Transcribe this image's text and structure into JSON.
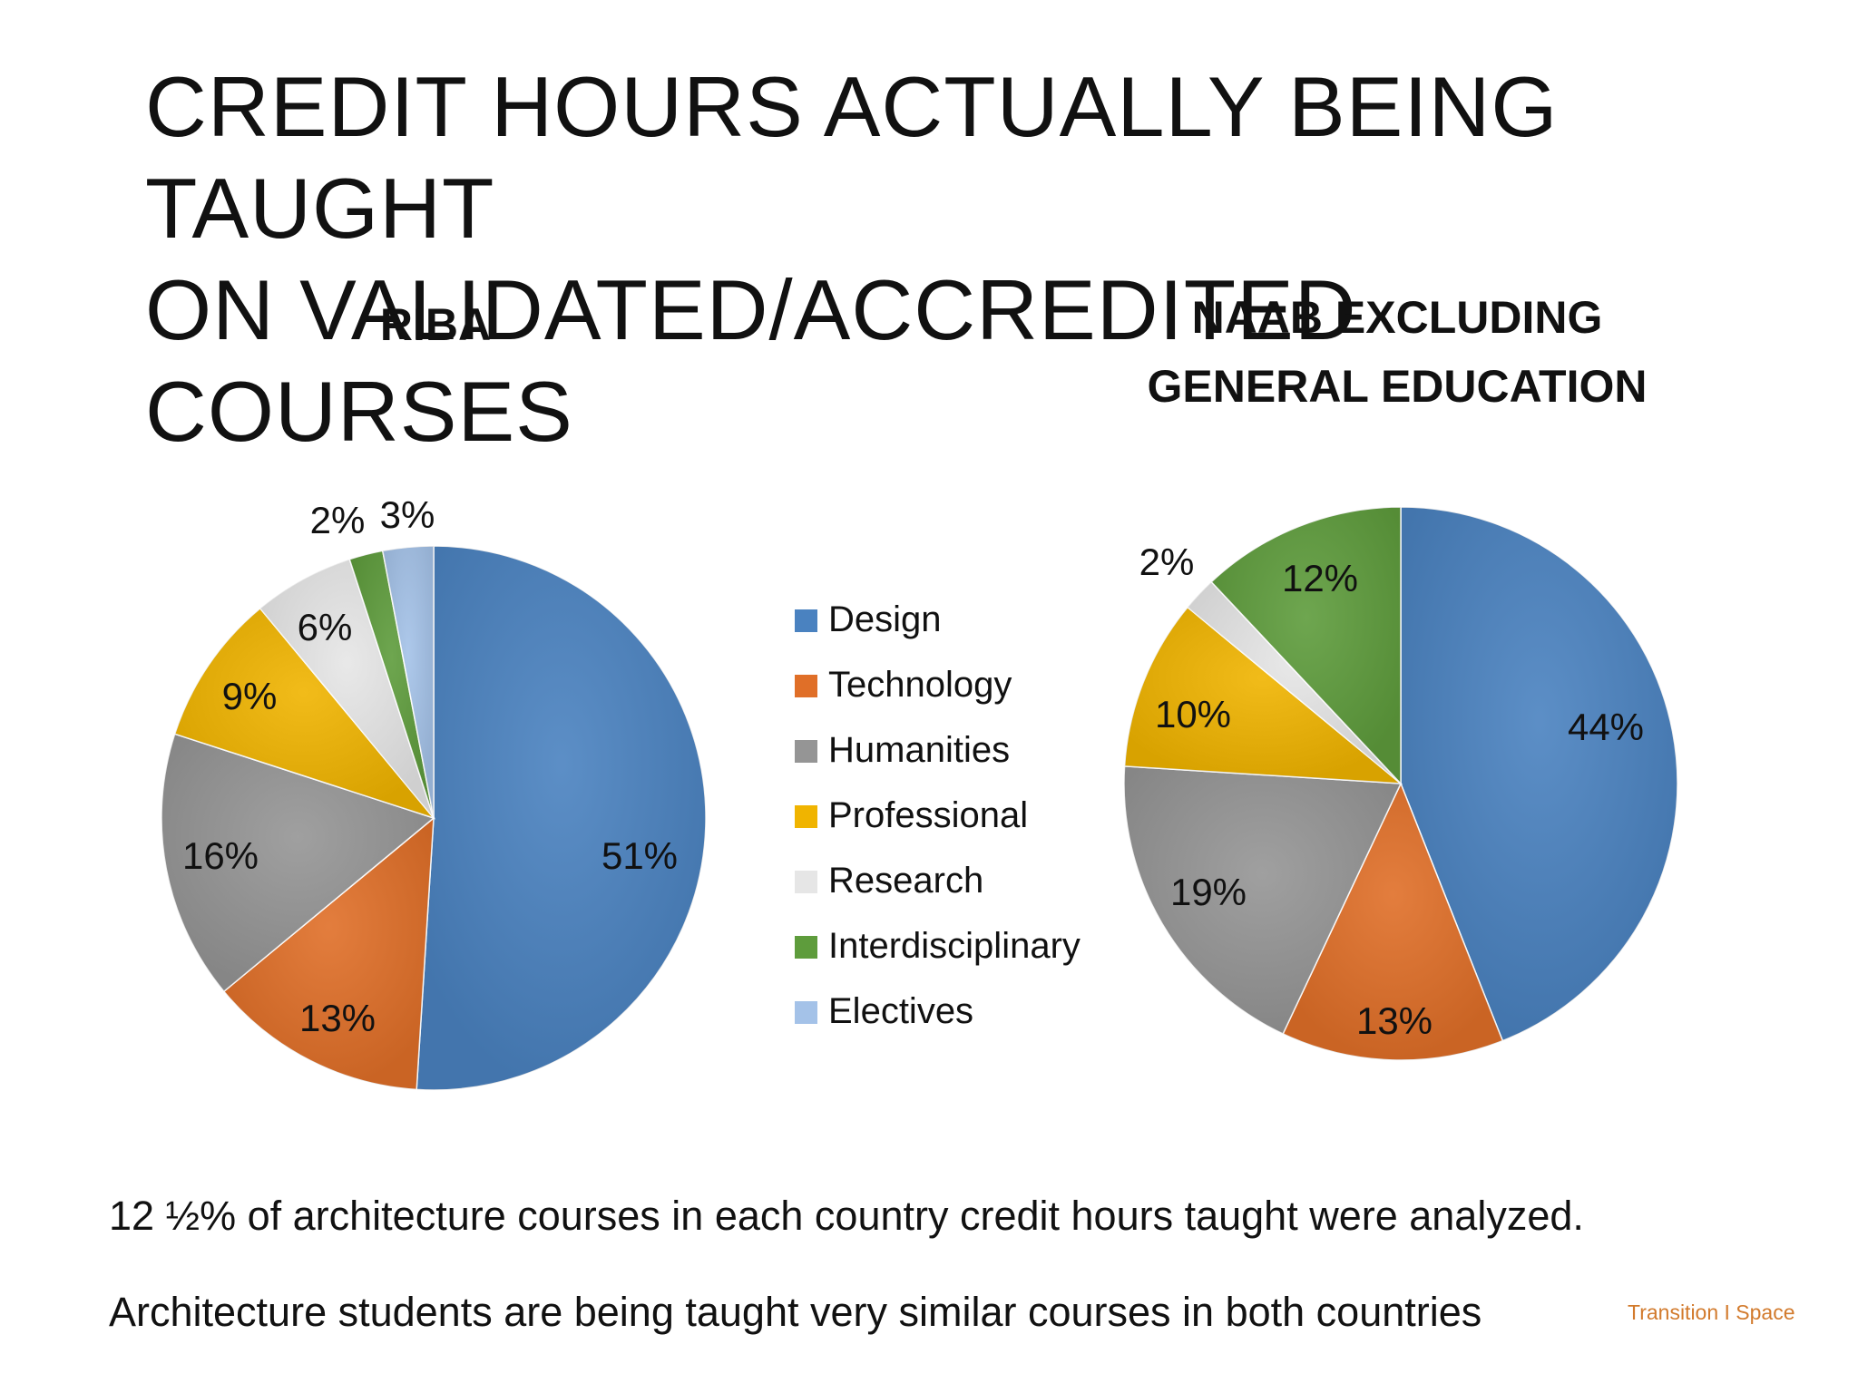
{
  "slide": {
    "title_line1": "CREDIT HOURS ACTUALLY BEING TAUGHT",
    "title_line2": "ON VALIDATED/ACCREDITED COURSES",
    "caption1": "12 ½% of architecture courses in each country credit hours taught were analyzed.",
    "caption2": "Architecture students are being taught very similar courses in both countries",
    "brand": "Transition I Space"
  },
  "chart_data": [
    {
      "type": "pie",
      "title": "RIBA",
      "categories": [
        "Design",
        "Technology",
        "Humanities",
        "Professional",
        "Research",
        "Interdisciplinary",
        "Electives"
      ],
      "values": [
        51,
        13,
        16,
        9,
        6,
        2,
        3
      ],
      "labels": [
        "51%",
        "13%",
        "16%",
        "9%",
        "6%",
        "2%",
        "3%"
      ],
      "legend_position": "right"
    },
    {
      "type": "pie",
      "title_line1": "NAAB EXCLUDING",
      "title_line2": "GENERAL EDUCATION",
      "categories": [
        "Design",
        "Technology",
        "Humanities",
        "Professional",
        "Research",
        "Interdisciplinary",
        "Electives"
      ],
      "values": [
        44,
        13,
        19,
        10,
        2,
        12,
        0
      ],
      "labels": [
        "44%",
        "13%",
        "19%",
        "10%",
        "2%",
        "12%",
        ""
      ],
      "legend_position": "left"
    }
  ],
  "legend": {
    "items": [
      "Design",
      "Technology",
      "Humanities",
      "Professional",
      "Research",
      "Interdisciplinary",
      "Electives"
    ]
  },
  "colors": {
    "Design": "#4a82c0",
    "Technology": "#e06f28",
    "Humanities": "#959595",
    "Professional": "#f0b400",
    "Research": "#e6e6e6",
    "Interdisciplinary": "#5e9c3c",
    "Electives": "#a4c2e8",
    "brand": "#d27a2c"
  }
}
